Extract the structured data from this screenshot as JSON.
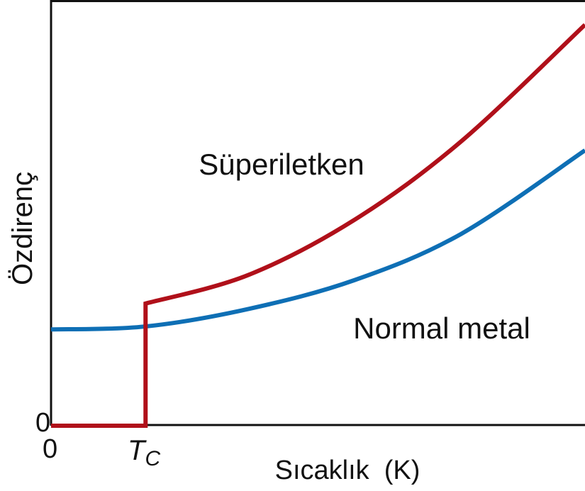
{
  "chart_data": {
    "type": "line",
    "title": "",
    "xlabel": "Sıcaklık  (K)",
    "ylabel": "Özdirenç",
    "xlim": [
      0,
      10
    ],
    "ylim": [
      0,
      10
    ],
    "grid": false,
    "x_ticks": [
      {
        "value": 0,
        "label": "0"
      },
      {
        "value": 1.77,
        "label": "T",
        "sub": "C"
      }
    ],
    "y_ticks": [
      {
        "value": 0,
        "label": "0"
      }
    ],
    "series": [
      {
        "name": "Süperiletken",
        "color": "#b0101a",
        "points": [
          [
            0,
            0
          ],
          [
            1.77,
            0
          ],
          [
            1.77,
            2.88
          ],
          [
            3.69,
            3.55
          ],
          [
            5.68,
            4.85
          ],
          [
            7.68,
            6.7
          ],
          [
            10,
            9.45
          ]
        ]
      },
      {
        "name": "Normal metal",
        "color": "#0e6fb5",
        "points": [
          [
            0,
            2.27
          ],
          [
            1.77,
            2.34
          ],
          [
            3.69,
            2.75
          ],
          [
            5.68,
            3.43
          ],
          [
            7.68,
            4.52
          ],
          [
            10,
            6.49
          ]
        ]
      }
    ]
  }
}
